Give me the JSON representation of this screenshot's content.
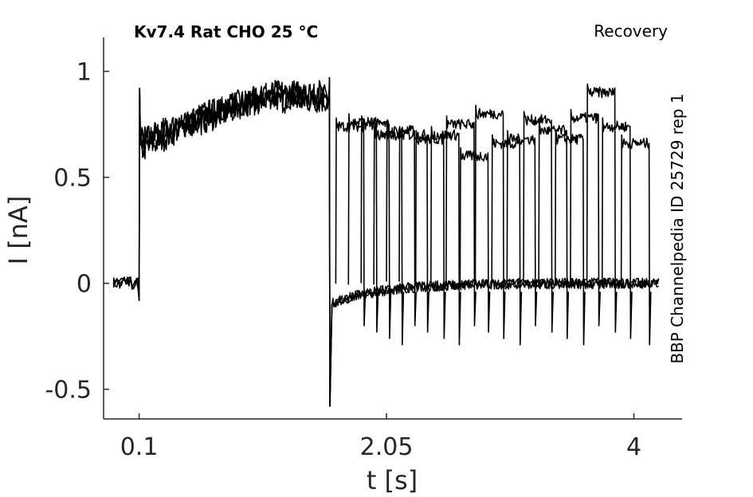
{
  "chart_data": {
    "type": "line",
    "title": "Kv7.4  Rat  CHO  25 °C",
    "condition": "Recovery",
    "side_label": "BBP Channelpedia ID 25729 rep 1",
    "xlabel": "t [s]",
    "ylabel": "I [nA]",
    "xlim": [
      -0.18,
      4.38
    ],
    "ylim": [
      -0.64,
      1.16
    ],
    "x_ticks": [
      0.1,
      2.05,
      4
    ],
    "x_tick_labels": [
      "0.1",
      "2.05",
      "4"
    ],
    "y_ticks": [
      -0.5,
      0,
      0.5,
      1
    ],
    "y_tick_labels": [
      "-0.5",
      "0",
      "0.5",
      "1"
    ],
    "grid": false,
    "legend": "none",
    "line_color": "#000000",
    "protocol": {
      "baseline_start": -0.1,
      "step_on": 0.1,
      "step_off": 1.6,
      "test_end": 4.2,
      "sweep_count": 20
    },
    "series": [
      {
        "values": [
          0.0,
          0.68,
          0.72,
          0.78,
          0.85,
          0.88,
          0.88
        ]
      },
      {
        "values": [
          0.0,
          0.62,
          0.7,
          0.8,
          0.84,
          0.86,
          0.86
        ]
      },
      {
        "values": [
          0.0,
          0.66,
          0.74,
          0.76,
          0.82,
          0.9,
          0.9
        ]
      }
    ],
    "test_pulses": [
      {
        "start": 1.65,
        "level": 0.74
      },
      {
        "start": 1.75,
        "level": 0.76
      },
      {
        "start": 1.85,
        "level": 0.75
      },
      {
        "start": 1.95,
        "level": 0.7
      },
      {
        "start": 2.05,
        "level": 0.72
      },
      {
        "start": 2.15,
        "level": 0.7
      },
      {
        "start": 2.28,
        "level": 0.68
      },
      {
        "start": 2.4,
        "level": 0.7
      },
      {
        "start": 2.52,
        "level": 0.75
      },
      {
        "start": 2.63,
        "level": 0.6
      },
      {
        "start": 2.75,
        "level": 0.8
      },
      {
        "start": 2.88,
        "level": 0.66
      },
      {
        "start": 3.0,
        "level": 0.68
      },
      {
        "start": 3.13,
        "level": 0.77
      },
      {
        "start": 3.25,
        "level": 0.72
      },
      {
        "start": 3.38,
        "level": 0.68
      },
      {
        "start": 3.5,
        "level": 0.78
      },
      {
        "start": 3.63,
        "level": 0.9
      },
      {
        "start": 3.75,
        "level": 0.74
      },
      {
        "start": 3.9,
        "level": 0.66
      }
    ]
  }
}
